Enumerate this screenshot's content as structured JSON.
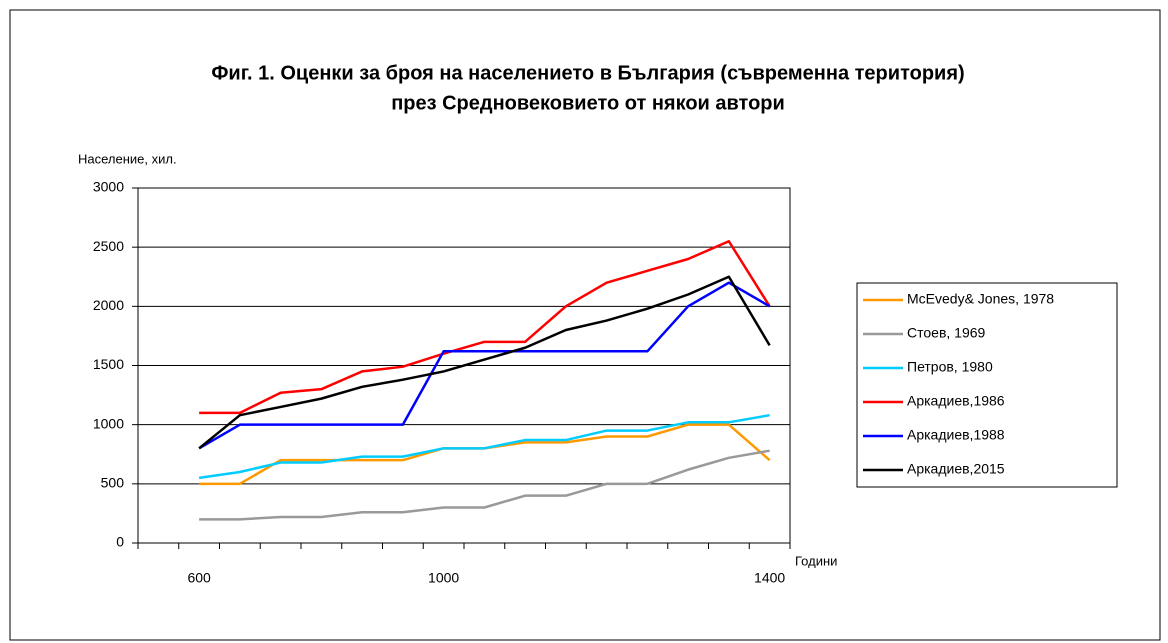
{
  "chart_data": {
    "type": "line",
    "title": "Фиг. 1. Оценки за броя на населението в България (съвременна територия)",
    "subtitle": "през Средновековието от някои автори",
    "y_label": "Население, хил.",
    "x_label": "Години",
    "categories": [
      null,
      "600",
      null,
      null,
      null,
      null,
      null,
      "1000",
      null,
      null,
      null,
      null,
      null,
      null,
      null,
      "1400"
    ],
    "series": [
      {
        "name": "McEvedy& Jones, 1978",
        "color": "#ff9900",
        "values": [
          null,
          500,
          500,
          700,
          700,
          700,
          700,
          800,
          800,
          850,
          850,
          900,
          900,
          1000,
          1000,
          700
        ]
      },
      {
        "name": "Стоев, 1969",
        "color": "#999999",
        "values": [
          null,
          200,
          200,
          220,
          220,
          260,
          260,
          300,
          300,
          400,
          400,
          500,
          500,
          620,
          720,
          780
        ]
      },
      {
        "name": "Петров, 1980",
        "color": "#00ccff",
        "values": [
          null,
          550,
          600,
          680,
          680,
          730,
          730,
          800,
          800,
          870,
          870,
          950,
          950,
          1020,
          1020,
          1080
        ]
      },
      {
        "name": "Аркадиев,1986",
        "color": "#ff0000",
        "values": [
          null,
          1100,
          1100,
          1270,
          1300,
          1450,
          1490,
          1600,
          1700,
          1700,
          2000,
          2200,
          2300,
          2400,
          2550,
          2000
        ]
      },
      {
        "name": "Аркадиев,1988",
        "color": "#0000ff",
        "values": [
          null,
          800,
          1000,
          1000,
          1000,
          1000,
          1000,
          1620,
          1620,
          1620,
          1620,
          1620,
          1620,
          2000,
          2200,
          2000
        ]
      },
      {
        "name": "Аркадиев,2015",
        "color": "#000000",
        "values": [
          null,
          800,
          1080,
          1150,
          1220,
          1320,
          1380,
          1450,
          1550,
          1650,
          1800,
          1880,
          1980,
          2100,
          2250,
          1670
        ]
      }
    ],
    "ylim": [
      0,
      3000
    ],
    "yticks": [
      0,
      500,
      1000,
      1500,
      2000,
      2500,
      3000
    ],
    "grid": true,
    "legend": "right"
  }
}
